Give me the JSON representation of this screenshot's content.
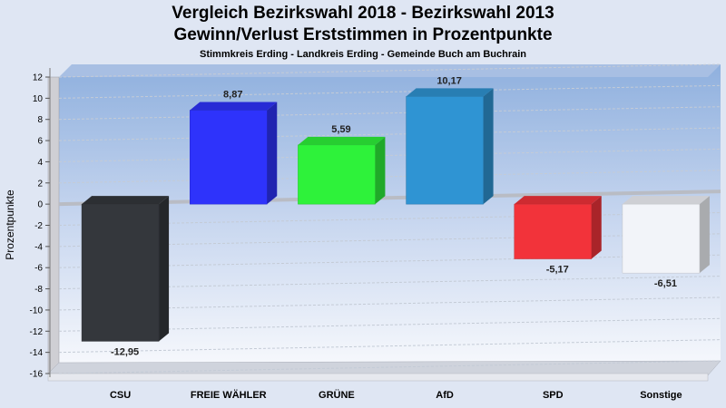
{
  "chart_data": {
    "type": "bar",
    "title": "Vergleich Bezirkswahl 2018 - Bezirkswahl 2013",
    "title2": "Gewinn/Verlust Erststimmen in Prozentpunkte",
    "subtitle": "Stimmkreis Erding - Landkreis Erding - Gemeinde Buch am Buchrain",
    "ylabel": "Prozentpunkte",
    "xlabel": "",
    "ylim": [
      -16,
      12
    ],
    "yticks": [
      12,
      10,
      8,
      6,
      4,
      2,
      0,
      -2,
      -4,
      -6,
      -8,
      -10,
      -12,
      -14,
      -16
    ],
    "grid": true,
    "categories": [
      "CSU",
      "FREIE WÄHLER",
      "GRÜNE",
      "AfD",
      "SPD",
      "Sonstige"
    ],
    "values": [
      -12.95,
      8.87,
      5.59,
      10.17,
      -5.17,
      -6.51
    ],
    "value_labels": [
      "-12,95",
      "8,87",
      "5,59",
      "10,17",
      "-5,17",
      "-6,51"
    ],
    "colors": [
      "#34373c",
      "#2e33fb",
      "#2ef23a",
      "#2f94d3",
      "#f2333a",
      "#f2f4f9"
    ]
  }
}
